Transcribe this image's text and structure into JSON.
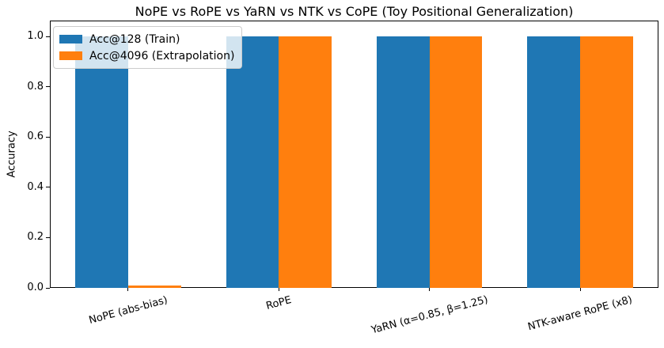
{
  "chart_data": {
    "type": "bar",
    "title": "NoPE vs RoPE vs YaRN vs NTK vs CoPE (Toy Positional Generalization)",
    "xlabel": "",
    "ylabel": "Accuracy",
    "categories": [
      "NoPE (abs-bias)",
      "RoPE",
      "YaRN (α=0.85, β=1.25)",
      "NTK-aware RoPE (x8)"
    ],
    "series": [
      {
        "name": "Acc@128 (Train)",
        "color": "#1f77b4",
        "values": [
          1.0,
          1.0,
          1.0,
          1.0
        ]
      },
      {
        "name": "Acc@4096 (Extrapolation)",
        "color": "#ff7f0e",
        "values": [
          0.01,
          1.0,
          1.0,
          1.0
        ]
      }
    ],
    "ylim": [
      0,
      1.063
    ],
    "yticks": [
      0.0,
      0.2,
      0.4,
      0.6,
      0.8,
      1.0
    ],
    "ytick_labels": [
      "0.0",
      "0.2",
      "0.4",
      "0.6",
      "0.8",
      "1.0"
    ],
    "bar_width": 0.35,
    "x_tick_rotation_deg": 15,
    "grid": false,
    "legend_position": "upper left",
    "background_color": "#ffffff",
    "axis_color": "#000000"
  }
}
